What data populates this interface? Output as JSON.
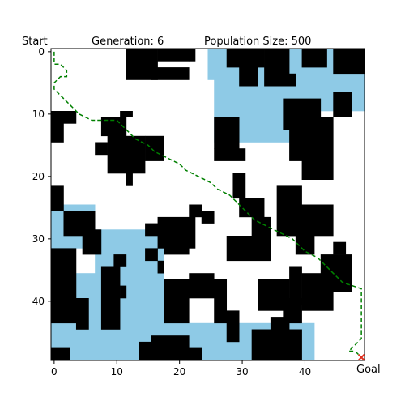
{
  "chart_data": {
    "type": "heatmap",
    "title_parts": {
      "left": "Start",
      "center": "Generation: 6",
      "right": "Population Size: 500"
    },
    "goal_label": "Goal",
    "grid_cols": 50,
    "grid_rows": 50,
    "xlim": [
      -0.5,
      49.5
    ],
    "ylim_top": -0.5,
    "ylim_bottom": 49.5,
    "x_ticks": [
      0,
      10,
      20,
      30,
      40
    ],
    "y_ticks": [
      0,
      10,
      20,
      30,
      40
    ],
    "legend": "none",
    "grid": false,
    "colors": {
      "obstacle": "#000000",
      "water": "#8ecae6",
      "free": "#ffffff",
      "path": "#008000",
      "goal_marker": "#e03020"
    },
    "start": [
      0,
      0
    ],
    "goal": [
      49,
      49
    ],
    "water_cells": [
      [
        25,
        0,
        30,
        5
      ],
      [
        31,
        0,
        50,
        2
      ],
      [
        29,
        2,
        50,
        9
      ],
      [
        26,
        5,
        38,
        15
      ],
      [
        38,
        8,
        50,
        10
      ],
      [
        0,
        25,
        7,
        32
      ],
      [
        7,
        29,
        18,
        36
      ],
      [
        3,
        36,
        18,
        44
      ],
      [
        0,
        44,
        42,
        50
      ]
    ],
    "obstacle_cells": [
      [
        12,
        0,
        17,
        5
      ],
      [
        17,
        0,
        22,
        2
      ],
      [
        22,
        0,
        23,
        2
      ],
      [
        28,
        0,
        34,
        3
      ],
      [
        34,
        0,
        38,
        6
      ],
      [
        40,
        0,
        44,
        3
      ],
      [
        45,
        0,
        50,
        4
      ],
      [
        16,
        3,
        22,
        5
      ],
      [
        30,
        2,
        33,
        6
      ],
      [
        36,
        4,
        39,
        6
      ],
      [
        37,
        8,
        43,
        13
      ],
      [
        45,
        7,
        48,
        11
      ],
      [
        0,
        10,
        2,
        15
      ],
      [
        2,
        10,
        4,
        12
      ],
      [
        8,
        11,
        12,
        14
      ],
      [
        9,
        14,
        15,
        20
      ],
      [
        15,
        14,
        18,
        18
      ],
      [
        7,
        15,
        9,
        17
      ],
      [
        12,
        20,
        13,
        22
      ],
      [
        11,
        10,
        13,
        11
      ],
      [
        26,
        11,
        30,
        16
      ],
      [
        26,
        16,
        31,
        18
      ],
      [
        40,
        11,
        45,
        21
      ],
      [
        38,
        13,
        44,
        18
      ],
      [
        0,
        22,
        2,
        26
      ],
      [
        2,
        26,
        7,
        30
      ],
      [
        5,
        29,
        8,
        33
      ],
      [
        29,
        20,
        31,
        24
      ],
      [
        30,
        24,
        34,
        27
      ],
      [
        36,
        22,
        40,
        30
      ],
      [
        38,
        25,
        45,
        30
      ],
      [
        39,
        27,
        42,
        33
      ],
      [
        32,
        27,
        35,
        30
      ],
      [
        17,
        27,
        23,
        32
      ],
      [
        15,
        28,
        18,
        30
      ],
      [
        18,
        32,
        22,
        33
      ],
      [
        22,
        25,
        24,
        27
      ],
      [
        28,
        30,
        35,
        34
      ],
      [
        24,
        26,
        26,
        28
      ],
      [
        0,
        32,
        4,
        44
      ],
      [
        4,
        40,
        6,
        45
      ],
      [
        8,
        35,
        11,
        45
      ],
      [
        10,
        33,
        12,
        35
      ],
      [
        11,
        38,
        12,
        40
      ],
      [
        15,
        32,
        17,
        34
      ],
      [
        17,
        34,
        18,
        36
      ],
      [
        18,
        37,
        22,
        44
      ],
      [
        22,
        36,
        26,
        40
      ],
      [
        26,
        37,
        28,
        44
      ],
      [
        28,
        42,
        30,
        47
      ],
      [
        33,
        37,
        38,
        42
      ],
      [
        37,
        40,
        40,
        44
      ],
      [
        38,
        35,
        40,
        41
      ],
      [
        40,
        36,
        45,
        42
      ],
      [
        43,
        33,
        48,
        39
      ],
      [
        45,
        31,
        47,
        33
      ],
      [
        32,
        45,
        40,
        50
      ],
      [
        35,
        43,
        38,
        46
      ],
      [
        16,
        46,
        22,
        50
      ],
      [
        22,
        48,
        24,
        50
      ],
      [
        14,
        47,
        17,
        50
      ],
      [
        0,
        48,
        3,
        50
      ]
    ],
    "path_points": [
      [
        0,
        0
      ],
      [
        0,
        2
      ],
      [
        1,
        2
      ],
      [
        2,
        3
      ],
      [
        2,
        4
      ],
      [
        1,
        4
      ],
      [
        0,
        5
      ],
      [
        0,
        6
      ],
      [
        1,
        7
      ],
      [
        2,
        8
      ],
      [
        3,
        9
      ],
      [
        4,
        10
      ],
      [
        6,
        11
      ],
      [
        8,
        11
      ],
      [
        10,
        11
      ],
      [
        11,
        12
      ],
      [
        12,
        13
      ],
      [
        13,
        14
      ],
      [
        15,
        15
      ],
      [
        16,
        16
      ],
      [
        18,
        17
      ],
      [
        20,
        18
      ],
      [
        21,
        19
      ],
      [
        23,
        20
      ],
      [
        25,
        21
      ],
      [
        26,
        22
      ],
      [
        28,
        23
      ],
      [
        29,
        24
      ],
      [
        30,
        25
      ],
      [
        31,
        26
      ],
      [
        32,
        27
      ],
      [
        34,
        28
      ],
      [
        36,
        29
      ],
      [
        38,
        30
      ],
      [
        40,
        32
      ],
      [
        42,
        33
      ],
      [
        44,
        35
      ],
      [
        46,
        37
      ],
      [
        49,
        38
      ],
      [
        49,
        40
      ],
      [
        49,
        42
      ],
      [
        49,
        45
      ],
      [
        49,
        46
      ],
      [
        48,
        47
      ],
      [
        47,
        48
      ],
      [
        48,
        48
      ],
      [
        49,
        49
      ]
    ]
  }
}
